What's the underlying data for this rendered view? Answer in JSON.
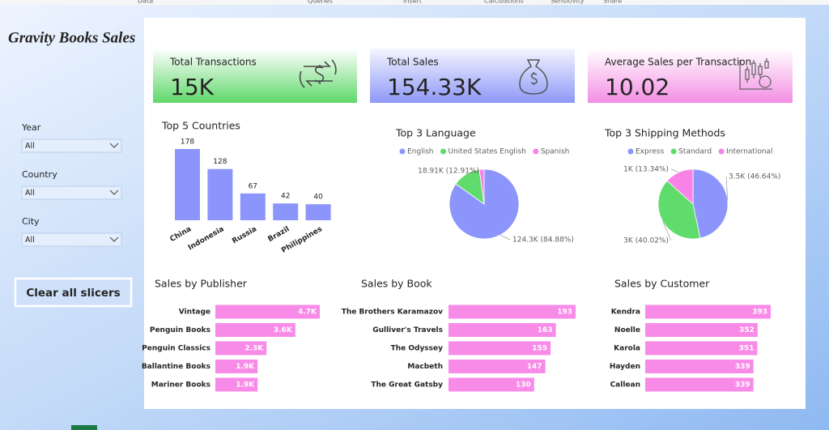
{
  "ribbon": [
    "Data",
    "Queries",
    "Insert",
    "Calculations",
    "Sensitivity",
    "Share"
  ],
  "title": "Gravity Books Sales",
  "slicers": [
    {
      "label": "Year",
      "value": "All"
    },
    {
      "label": "Country",
      "value": "All"
    },
    {
      "label": "City",
      "value": "All"
    }
  ],
  "button": "Clear all slicers",
  "kpis": [
    {
      "label": "Total Transactions",
      "value": "15K"
    },
    {
      "label": "Total Sales",
      "value": "154.33K"
    },
    {
      "label": "Average Sales per Transaction",
      "value": "10.02"
    }
  ],
  "chart_data": [
    {
      "type": "bar",
      "title": "Top 5 Countries",
      "categories": [
        "China",
        "Indonesia",
        "Russia",
        "Brazil",
        "Philippines"
      ],
      "values": [
        178,
        128,
        67,
        42,
        40
      ],
      "color": "#8c95fc"
    },
    {
      "type": "pie",
      "title": "Top 3 Language",
      "categories": [
        "English",
        "United States English",
        "Spanish"
      ],
      "values": [
        124300,
        18910,
        3240
      ],
      "value_labels": [
        "124.3K (84.88%)",
        "18.91K (12.91%)",
        null
      ],
      "colors": [
        "#8c95fc",
        "#5fdc6b",
        "#f882e6"
      ],
      "legend": "top"
    },
    {
      "type": "pie",
      "title": "Top 3 Shipping Methods",
      "categories": [
        "Express",
        "Standard",
        "International"
      ],
      "values": [
        3500,
        3000,
        1000
      ],
      "value_labels": [
        "3.5K (46.64%)",
        "3K (40.02%)",
        "1K (13.34%)"
      ],
      "colors": [
        "#8c95fc",
        "#5fdc6b",
        "#f882e6"
      ],
      "legend": "top"
    },
    {
      "type": "hbar",
      "title": "Sales by Publisher",
      "categories": [
        "Vintage",
        "Penguin Books",
        "Penguin Classics",
        "Ballantine Books",
        "Mariner Books"
      ],
      "values": [
        4700,
        3600,
        2300,
        1900,
        1900
      ],
      "value_labels": [
        "4.7K",
        "3.6K",
        "2.3K",
        "1.9K",
        "1.9K"
      ],
      "color": "#f98be8"
    },
    {
      "type": "hbar",
      "title": "Sales by Book",
      "categories": [
        "The Brothers Karamazov",
        "Gulliver's Travels",
        "The Odyssey",
        "Macbeth",
        "The Great Gatsby"
      ],
      "values": [
        193,
        163,
        155,
        147,
        130
      ],
      "color": "#f98be8"
    },
    {
      "type": "hbar",
      "title": "Sales by Customer",
      "categories": [
        "Kendra",
        "Noelle",
        "Karola",
        "Hayden",
        "Callean"
      ],
      "values": [
        393,
        352,
        351,
        339,
        339
      ],
      "color": "#f98be8"
    }
  ]
}
